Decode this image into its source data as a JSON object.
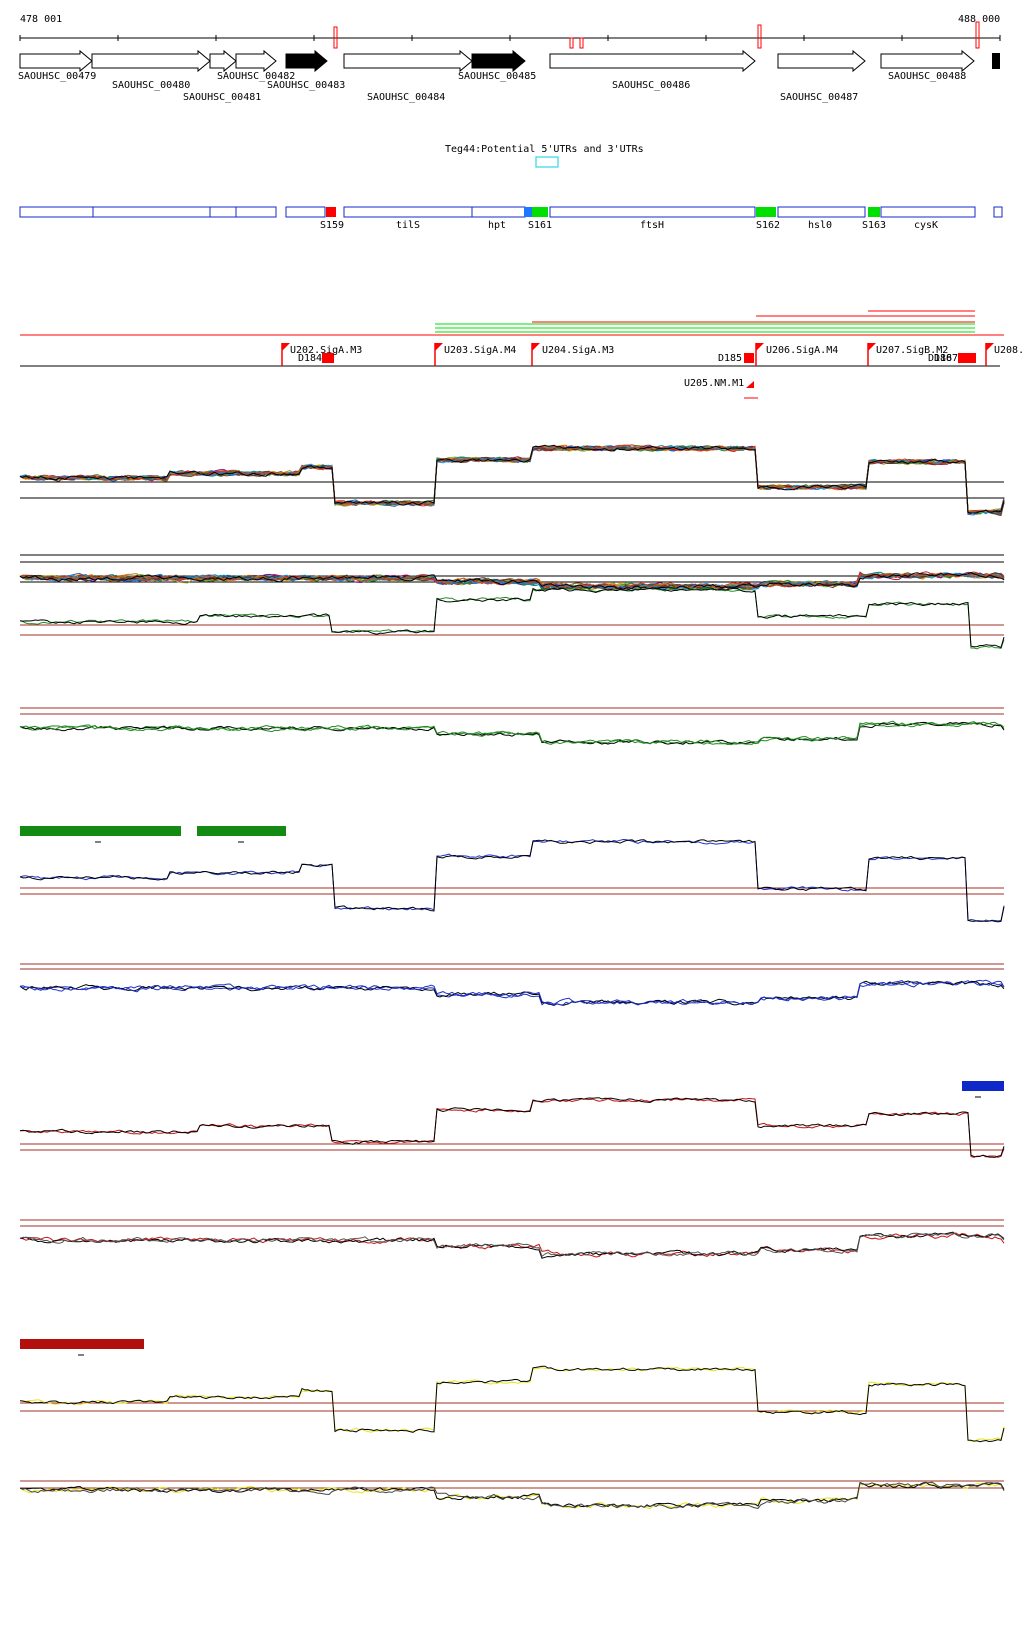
{
  "coordinates": {
    "start_label": "478 001",
    "end_label": "488 000"
  },
  "colors": {
    "axis": "#000000",
    "gene_fill": "#ffffff",
    "gene_stroke": "#000000",
    "gene_dark": "#000000",
    "feature_box": "#1428c8",
    "srna_red": "#ff0000",
    "srna_green": "#00e000",
    "srna_blue": "#1e78ff",
    "utr_box": "#33d6e6",
    "promoter_red": "#ff0000",
    "baseline_brown": "#a03020",
    "green_track": "#228b22",
    "blue_track": "#1e32c8",
    "red_track": "#c81414",
    "yellow_track": "#e6e614",
    "green_bar": "#138a13",
    "blue_bar": "#0f28c8",
    "red_bar": "#b40f0f"
  },
  "genes": [
    {
      "id": "SAOUHSC_00479",
      "dark": false
    },
    {
      "id": "SAOUHSC_00480",
      "dark": false
    },
    {
      "id": "SAOUHSC_00481",
      "dark": false
    },
    {
      "id": "SAOUHSC_00482",
      "dark": false
    },
    {
      "id": "SAOUHSC_00483",
      "dark": true
    },
    {
      "id": "SAOUHSC_00484",
      "dark": false
    },
    {
      "id": "SAOUHSC_00485",
      "dark": true
    },
    {
      "id": "SAOUHSC_00486",
      "dark": false
    },
    {
      "id": "SAOUHSC_00487",
      "dark": false
    },
    {
      "id": "SAOUHSC_00488",
      "dark": false
    }
  ],
  "utr_track": {
    "label": "Teg44:Potential 5'UTRs and 3'UTRs"
  },
  "feature_labels": [
    {
      "text": "S159",
      "kind": "red"
    },
    {
      "text": "tilS",
      "kind": "gene"
    },
    {
      "text": "hpt",
      "kind": "gene"
    },
    {
      "text": "S161",
      "kind": "green"
    },
    {
      "text": "ftsH",
      "kind": "gene"
    },
    {
      "text": "S162",
      "kind": "green"
    },
    {
      "text": "hsl0",
      "kind": "gene"
    },
    {
      "text": "S163",
      "kind": "green"
    },
    {
      "text": "cysK",
      "kind": "gene"
    }
  ],
  "promoters": [
    {
      "label": "U202.SigA.M3"
    },
    {
      "label": "U203.SigA.M4"
    },
    {
      "label": "U204.SigA.M3"
    },
    {
      "label": "U205.NM.M1"
    },
    {
      "label": "U206.SigA.M4"
    },
    {
      "label": "U207.SigB.M2"
    },
    {
      "label": "U208."
    }
  ],
  "terminators": [
    {
      "label": "D184"
    },
    {
      "label": "D185"
    },
    {
      "label": "D186"
    },
    {
      "label": "D187"
    }
  ]
}
